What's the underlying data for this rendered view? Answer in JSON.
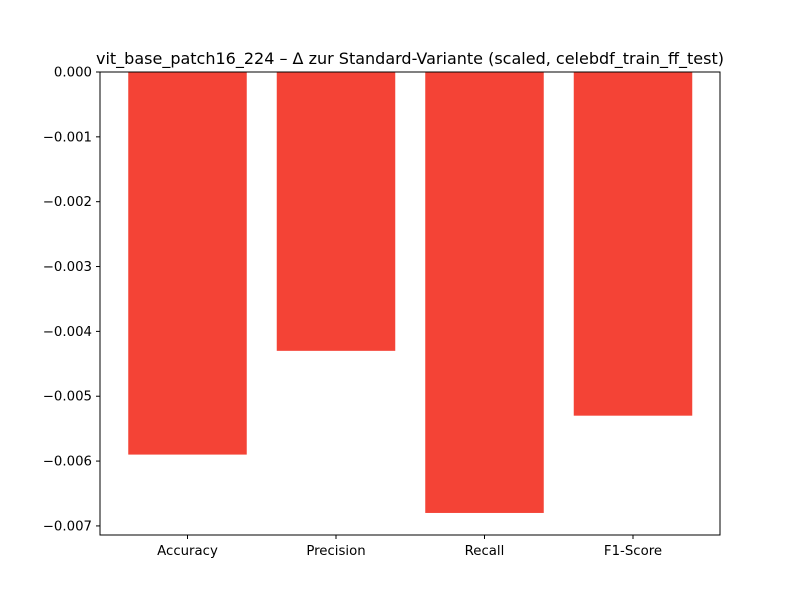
{
  "chart_data": {
    "type": "bar",
    "title": "vit_base_patch16_224 – Δ zur Standard-Variante (scaled, celebdf_train_ff_test)",
    "xlabel": "",
    "ylabel": "",
    "categories": [
      "Accuracy",
      "Precision",
      "Recall",
      "F1-Score"
    ],
    "values": [
      -0.0059,
      -0.0043,
      -0.0068,
      -0.0053
    ],
    "ylim": [
      -0.00714,
      0.0
    ],
    "yticks": [
      0.0,
      -0.001,
      -0.002,
      -0.003,
      -0.004,
      -0.005,
      -0.006,
      -0.007
    ],
    "ytick_labels": [
      "0.000",
      "−0.001",
      "−0.002",
      "−0.003",
      "−0.004",
      "−0.005",
      "−0.006",
      "−0.007"
    ],
    "grid": false,
    "legend": "none",
    "colors": {
      "bar": "#f44336",
      "axis": "#000000",
      "background": "#ffffff"
    }
  }
}
